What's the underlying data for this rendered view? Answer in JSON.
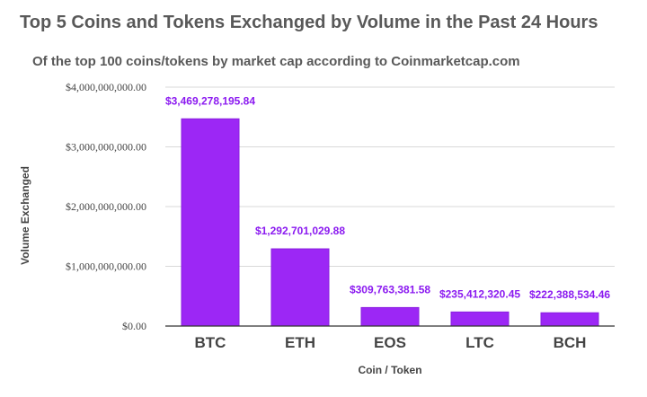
{
  "chart_data": {
    "type": "bar",
    "title": "Top 5 Coins and Tokens Exchanged by Volume in the Past 24 Hours",
    "subtitle": "Of the top 100 coins/tokens by market cap according to Coinmarketcap.com",
    "xlabel": "Coin / Token",
    "ylabel": "Volume Exchanged",
    "categories": [
      "BTC",
      "ETH",
      "EOS",
      "LTC",
      "BCH"
    ],
    "values": [
      3469278195.84,
      1292701029.88,
      309763381.58,
      235412320.45,
      222388534.46
    ],
    "data_labels": [
      "$3,469,278,195.84",
      "$1,292,701,029.88",
      "$309,763,381.58",
      "$235,412,320.45",
      "$222,388,534.46"
    ],
    "ylim": [
      0,
      4000000000
    ],
    "yticks": [
      0,
      1000000000,
      2000000000,
      3000000000,
      4000000000
    ],
    "ytick_labels": [
      "$0.00",
      "$1,000,000,000.00",
      "$2,000,000,000.00",
      "$3,000,000,000.00",
      "$4,000,000,000.00"
    ],
    "grid": true,
    "colors": {
      "bar": "#9C27F5",
      "bar_border": "#8A1FE0",
      "data_label": "#8B1AF0",
      "grid": "#D9D9D9"
    }
  }
}
